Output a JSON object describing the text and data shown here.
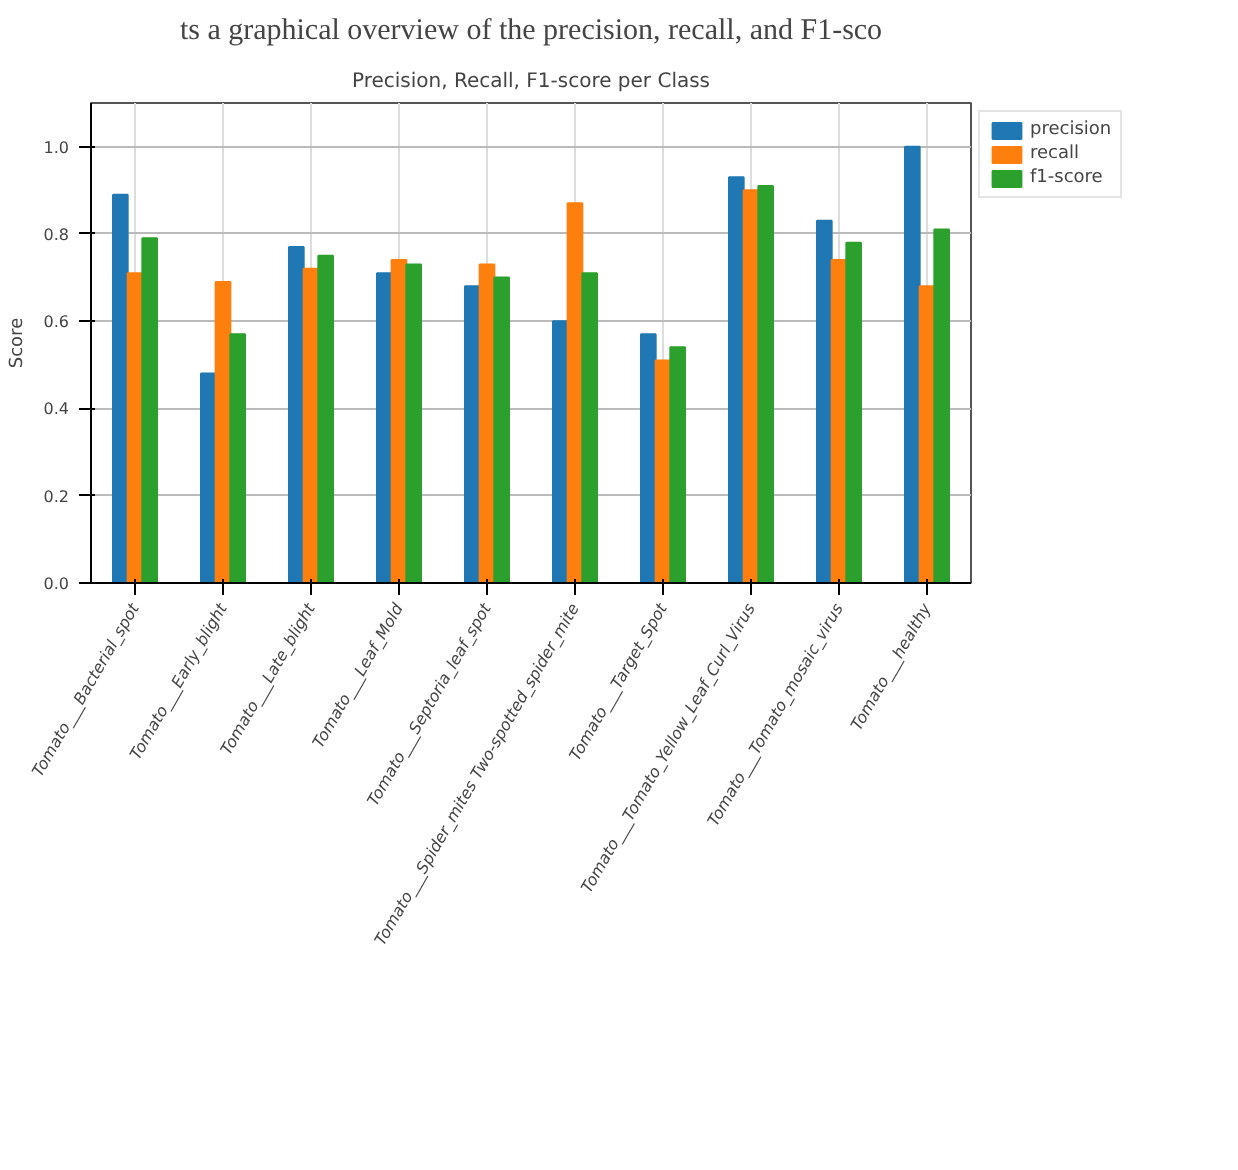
{
  "chart_data": {
    "type": "bar",
    "title": "Precision, Recall, F1-score per Class",
    "annotations": [
      "ts a graphical overview of the precision, recall, and F1-sco"
    ],
    "ylabel": "Score",
    "categories": [
      "Tomato___Bacterial_spot",
      "Tomato___Early_blight",
      "Tomato___Late_blight",
      "Tomato___Leaf_Mold",
      "Tomato___Septoria_leaf_spot",
      "Tomato___Spider_mites Two-spotted_spider_mite",
      "Tomato___Target_Spot",
      "Tomato___Tomato_Yellow_Leaf_Curl_Virus",
      "Tomato___Tomato_mosaic_virus",
      "Tomato___healthy"
    ],
    "series": [
      {
        "name": "precision",
        "color": "#1f77b4",
        "values": [
          0.89,
          0.48,
          0.77,
          0.71,
          0.68,
          0.6,
          0.57,
          0.93,
          0.83,
          1.0
        ]
      },
      {
        "name": "recall",
        "color": "#ff7f0e",
        "values": [
          0.71,
          0.69,
          0.72,
          0.74,
          0.73,
          0.87,
          0.51,
          0.9,
          0.74,
          0.68
        ]
      },
      {
        "name": "f1-score",
        "color": "#2ca02c",
        "values": [
          0.79,
          0.57,
          0.75,
          0.73,
          0.7,
          0.71,
          0.54,
          0.91,
          0.78,
          0.81
        ]
      }
    ],
    "ylim": [
      0,
      1.1
    ],
    "yticks": [
      {
        "value": 0,
        "label": "0.0"
      },
      {
        "value": 0.2,
        "label": "0.2"
      },
      {
        "value": 0.4,
        "label": "0.4"
      },
      {
        "value": 0.6,
        "label": "0.6"
      },
      {
        "value": 0.8,
        "label": "0.8"
      },
      {
        "value": 1.0,
        "label": "1.0"
      }
    ],
    "grid": true,
    "legend": "top right"
  }
}
